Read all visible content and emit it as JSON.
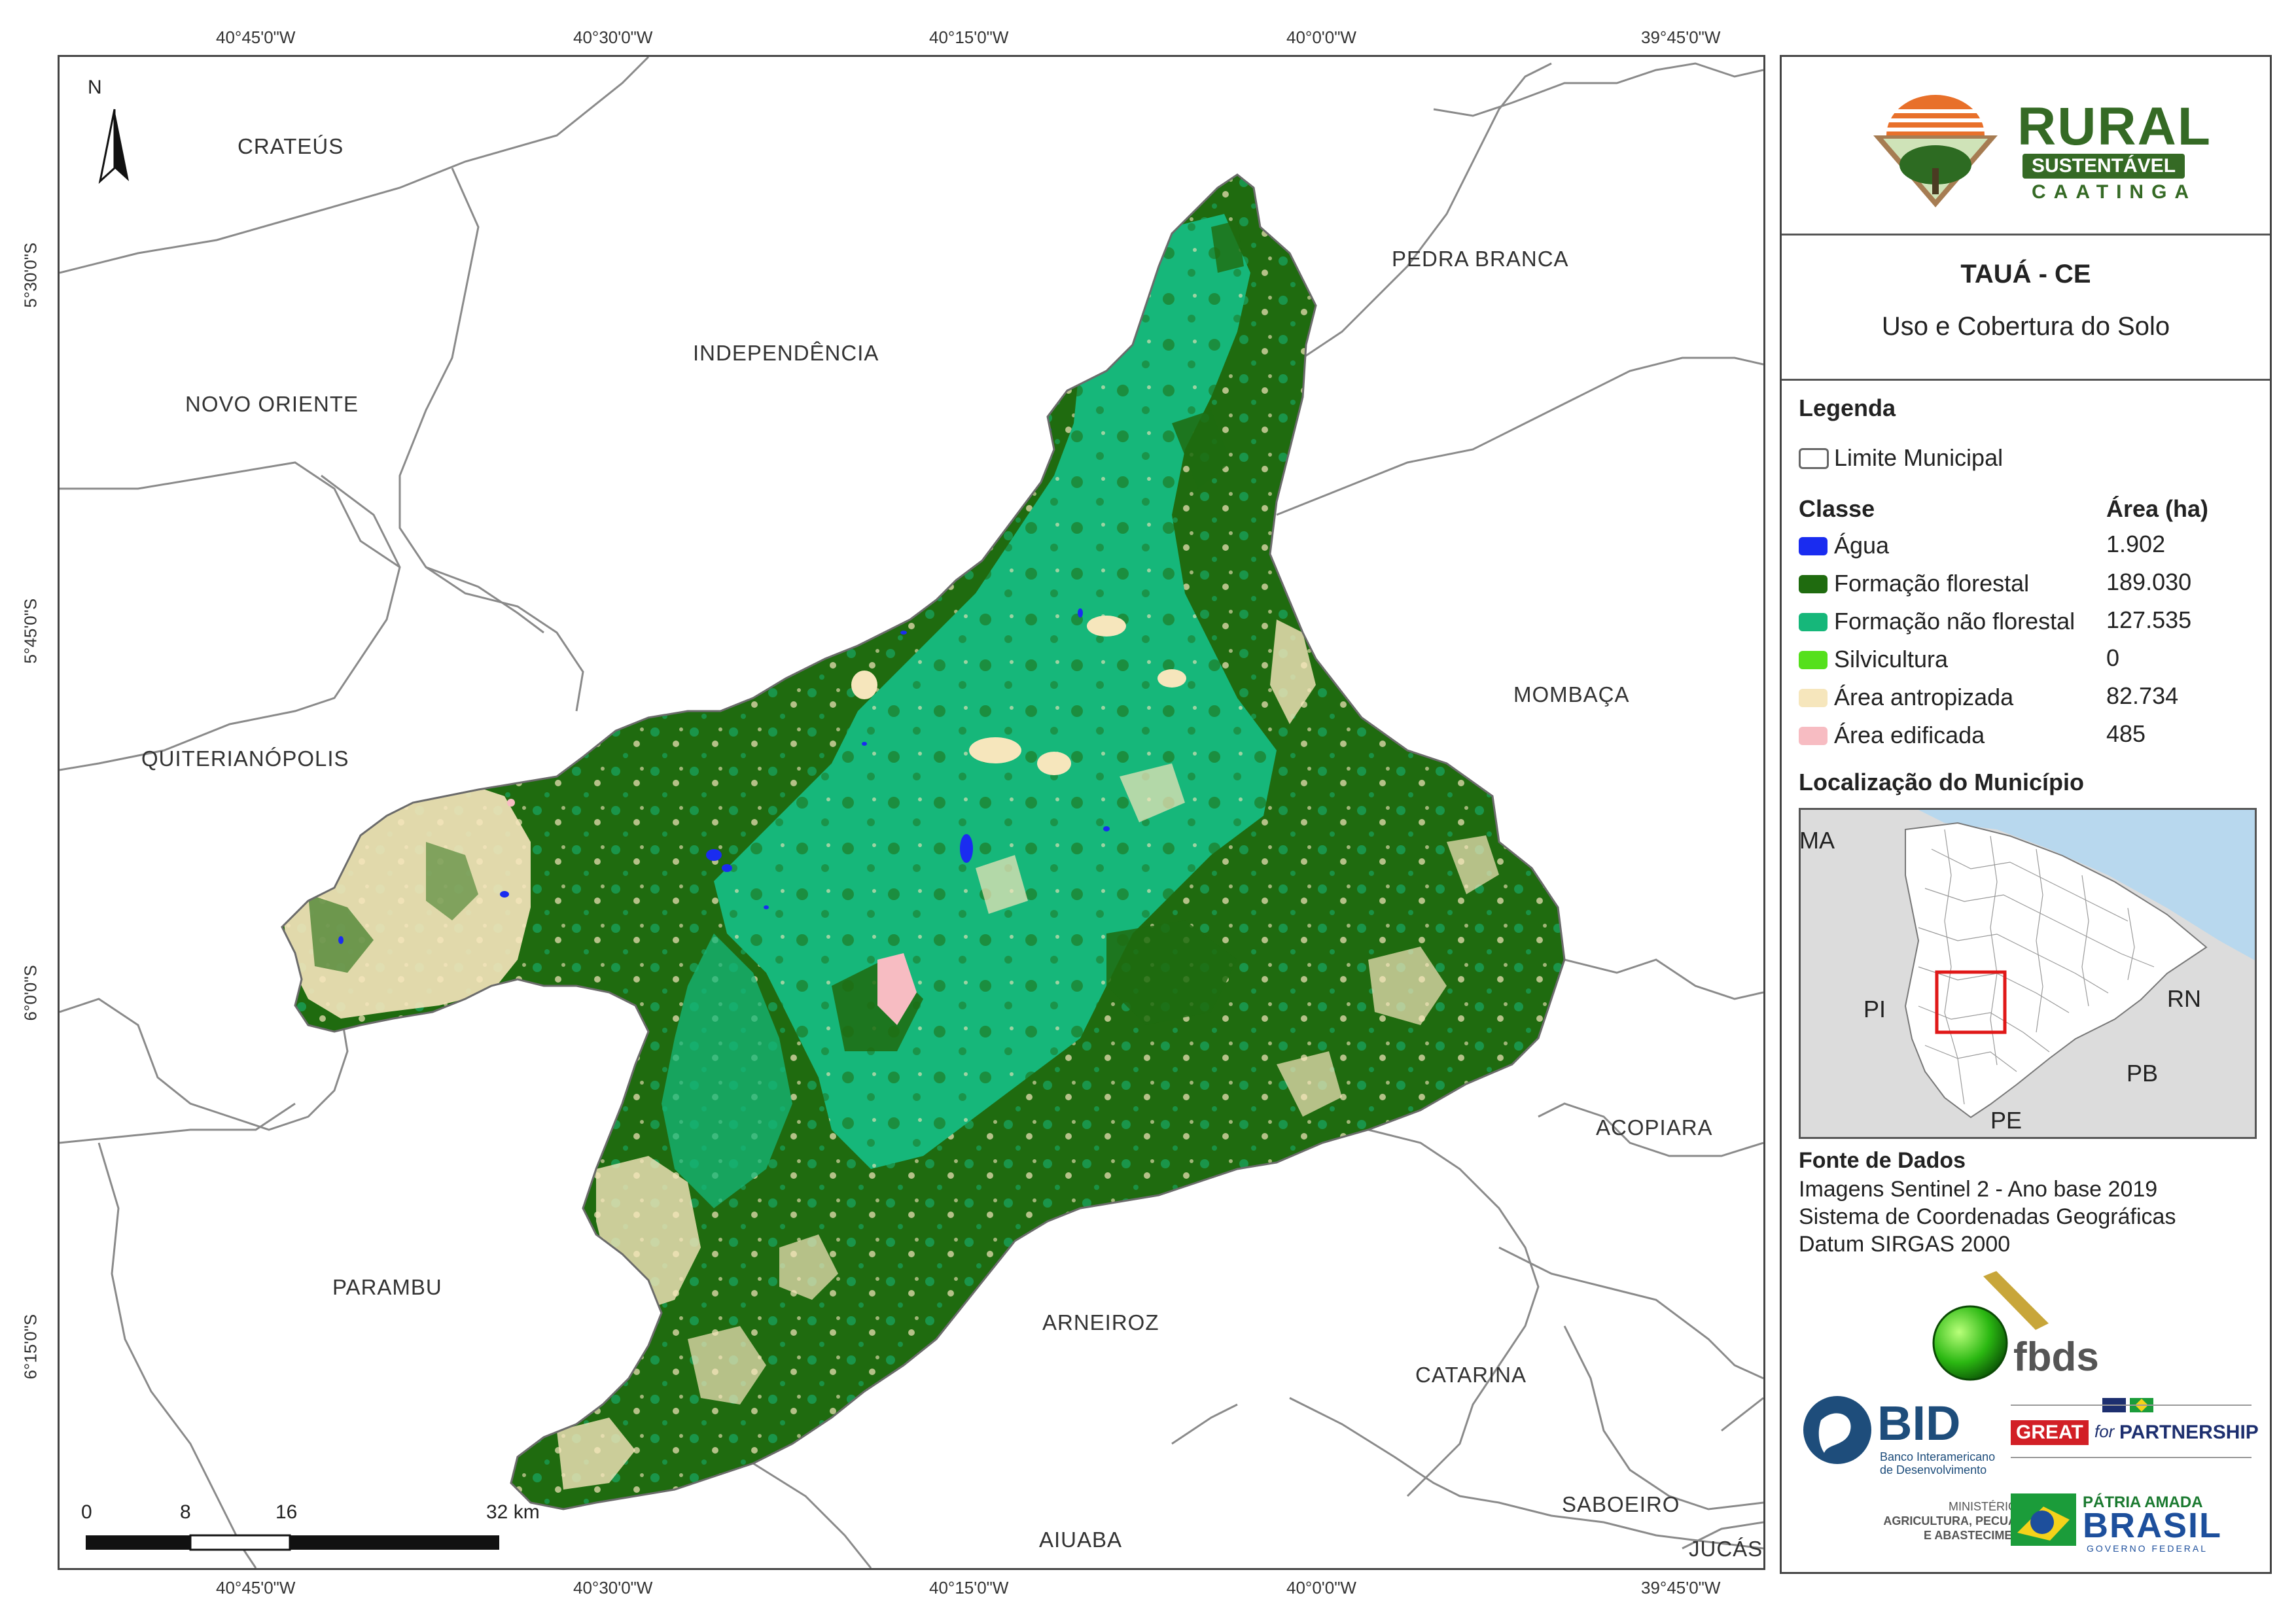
{
  "map": {
    "coords_top": [
      "40°45'0\"W",
      "40°30'0\"W",
      "40°15'0\"W",
      "40°0'0\"W",
      "39°45'0\"W"
    ],
    "coords_bottom": [
      "40°45'0\"W",
      "40°30'0\"W",
      "40°15'0\"W",
      "40°0'0\"W",
      "39°45'0\"W"
    ],
    "coords_left": [
      "5°30'0\"S",
      "5°45'0\"S",
      "6°0'0\"S",
      "6°15'0\"S"
    ],
    "north": "N",
    "places": {
      "crateus": "CRATEÚS",
      "independencia": "INDEPENDÊNCIA",
      "pedra_branca": "PEDRA BRANCA",
      "novo_oriente": "NOVO ORIENTE",
      "mombaca": "MOMBAÇA",
      "quiterianopolis": "QUITERIANÓPOLIS",
      "acopiara": "ACOPIARA",
      "parambu": "PARAMBU",
      "arneiroz": "ARNEIROZ",
      "catarina": "CATARINA",
      "saboeiro": "SABOEIRO",
      "aiuaba": "AIUABA",
      "jucas": "JUCÁS"
    },
    "scale": {
      "labels": [
        "0",
        "8",
        "16",
        "32 km"
      ]
    }
  },
  "panel": {
    "logo": {
      "rural": "RURAL",
      "sustentavel": "SUSTENTÁVEL",
      "caatinga": "CAATINGA"
    },
    "title": "TAUÁ - CE",
    "subtitle": "Uso e Cobertura do Solo",
    "legend": {
      "heading": "Legenda",
      "boundary_label": "Limite Municipal",
      "class_header": "Classe",
      "area_header": "Área (ha)",
      "classes": [
        {
          "name": "Água",
          "area": "1.902",
          "color": "#1a2cf0"
        },
        {
          "name": "Formação florestal",
          "area": "189.030",
          "color": "#1f6b0f"
        },
        {
          "name": "Formação não florestal",
          "area": "127.535",
          "color": "#16b77a"
        },
        {
          "name": "Silvicultura",
          "area": "0",
          "color": "#55e01c"
        },
        {
          "name": "Área antropizada",
          "area": "82.734",
          "color": "#f6e6bc"
        },
        {
          "name": "Área edificada",
          "area": "485",
          "color": "#f7bcc2"
        }
      ]
    },
    "location": {
      "heading": "Localização do Município",
      "labels": {
        "ma": "MA",
        "pi": "PI",
        "rn": "RN",
        "pb": "PB",
        "pe": "PE"
      }
    },
    "source": {
      "heading": "Fonte de Dados",
      "lines": [
        "Imagens Sentinel 2 - Ano base 2019",
        "Sistema de Coordenadas Geográficas",
        "Datum SIRGAS 2000"
      ]
    },
    "logos": {
      "fbds": "fbds",
      "bid": "BID",
      "bid_sub1": "Banco Interamericano",
      "bid_sub2": "de Desenvolvimento",
      "great": "GREAT",
      "for": "for",
      "partnership": "PARTNERSHIP",
      "ministerio1": "MINISTÉRIO DA",
      "ministerio2": "AGRICULTURA, PECUÁRIA",
      "ministerio3": "E ABASTECIMENTO",
      "patria": "PÁTRIA AMADA",
      "brasil": "BRASIL",
      "governo": "GOVERNO FEDERAL"
    }
  }
}
